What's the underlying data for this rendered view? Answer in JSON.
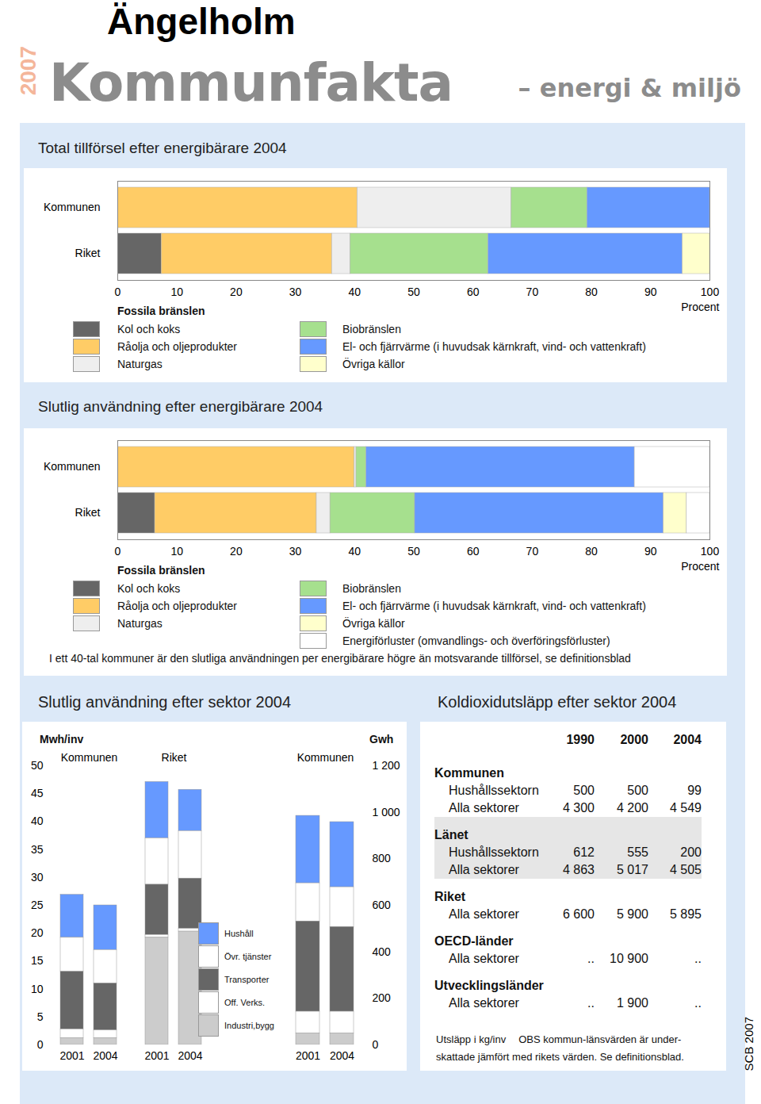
{
  "header": {
    "place": "Ängelholm",
    "year": "2007",
    "title": "Kommunfakta",
    "subtitle": "– energi & miljö",
    "source": "SCB 2007"
  },
  "chart_data": [
    {
      "type": "bar",
      "title": "Total tillförsel efter energibärare 2004",
      "orientation": "horizontal",
      "stacked": true,
      "categories": [
        "Kommunen",
        "Riket"
      ],
      "x_label": "Procent",
      "xlim": [
        0,
        100
      ],
      "xticks": [
        0,
        10,
        20,
        30,
        40,
        50,
        60,
        70,
        80,
        90,
        100
      ],
      "series": [
        {
          "name": "Kol och koks",
          "group": "Fossila bränslen",
          "color": "#666666",
          "values": [
            0,
            7.4
          ]
        },
        {
          "name": "Råolja och oljeprodukter",
          "group": "Fossila bränslen",
          "color": "#ffcc66",
          "values": [
            40.5,
            28.8
          ]
        },
        {
          "name": "Naturgas",
          "group": "Fossila bränslen",
          "color": "#eeeeee",
          "values": [
            26,
            3.1
          ]
        },
        {
          "name": "Biobränslen",
          "color": "#a6e08e",
          "values": [
            12.8,
            23.3
          ]
        },
        {
          "name": "El- och fjärrvärme (i huvudsak kärnkraft, vind- och vattenkraft)",
          "color": "#6699ff",
          "values": [
            20.7,
            32.8
          ]
        },
        {
          "name": "Övriga källor",
          "color": "#ffffcc",
          "values": [
            0,
            4.6
          ]
        }
      ]
    },
    {
      "type": "bar",
      "title": "Slutlig användning efter energibärare 2004",
      "orientation": "horizontal",
      "stacked": true,
      "categories": [
        "Kommunen",
        "Riket"
      ],
      "x_label": "Procent",
      "xlim": [
        0,
        100
      ],
      "xticks": [
        0,
        10,
        20,
        30,
        40,
        50,
        60,
        70,
        80,
        90,
        100
      ],
      "note": "I ett 40-tal kommuner är den slutliga användningen per energibärare högre än motsvarande tillförsel, se definitionsblad",
      "series": [
        {
          "name": "Kol och koks",
          "group": "Fossila bränslen",
          "color": "#666666",
          "values": [
            0,
            6.3
          ]
        },
        {
          "name": "Råolja och oljeprodukter",
          "group": "Fossila bränslen",
          "color": "#ffcc66",
          "values": [
            40,
            27.3
          ]
        },
        {
          "name": "Naturgas",
          "group": "Fossila bränslen",
          "color": "#eeeeee",
          "values": [
            0.3,
            2.3
          ]
        },
        {
          "name": "Biobränslen",
          "color": "#a6e08e",
          "values": [
            1.7,
            14.3
          ]
        },
        {
          "name": "El- och fjärrvärme (i huvudsak kärnkraft, vind- och vattenkraft)",
          "color": "#6699ff",
          "values": [
            45.3,
            42
          ]
        },
        {
          "name": "Övriga källor",
          "color": "#ffffcc",
          "values": [
            0,
            3.9
          ]
        },
        {
          "name": "Energiförluster (omvandlings- och överföringsförluster)",
          "color": "#ffffff",
          "values": [
            12.7,
            3.9
          ]
        }
      ]
    },
    {
      "type": "bar",
      "title": "Slutlig användning efter sektor 2004",
      "stacked": true,
      "y_label": "Mwh/inv",
      "categories": [
        "2001",
        "2004",
        "2001",
        "2004"
      ],
      "groups": [
        "Kommunen",
        "Kommunen",
        "Riket",
        "Riket"
      ],
      "ylim": [
        0,
        50
      ],
      "yticks": [
        0,
        5,
        10,
        15,
        20,
        25,
        30,
        35,
        40,
        45,
        50
      ],
      "series": [
        {
          "name": "Hushåll",
          "color": "#6699ff",
          "values": [
            7.7,
            8.0,
            10.1,
            7.4
          ]
        },
        {
          "name": "Övr. tjänster",
          "color": "#ffffff",
          "values": [
            6.1,
            6.0,
            8.3,
            8.5
          ]
        },
        {
          "name": "Transporter",
          "color": "#666666",
          "values": [
            10.3,
            8.4,
            9.0,
            9.0
          ]
        },
        {
          "name": "Off. Verks.",
          "color": "#ffffff",
          "values": [
            1.6,
            1.4,
            0.5,
            0.5
          ]
        },
        {
          "name": "Industri,bygg",
          "color": "#cccccc",
          "values": [
            1.2,
            1.2,
            19.2,
            20.3
          ]
        }
      ]
    },
    {
      "type": "bar",
      "stacked": true,
      "y_label": "Gwh",
      "categories": [
        "2001",
        "2004"
      ],
      "groups": [
        "Kommunen",
        "Kommunen"
      ],
      "ylim": [
        0,
        1200
      ],
      "yticks": [
        0,
        200,
        400,
        600,
        800,
        {
          "value": 1000,
          "label": "1 000"
        },
        {
          "value": 1200,
          "label": "1 200"
        }
      ],
      "series": [
        {
          "name": "Hushåll",
          "color": "#6699ff",
          "values": [
            290,
            280
          ]
        },
        {
          "name": "Övr. tjänster",
          "color": "#ffffff",
          "values": [
            164,
            171
          ]
        },
        {
          "name": "Transporter",
          "color": "#666666",
          "values": [
            388,
            364
          ]
        },
        {
          "name": "Off. Verks.",
          "color": "#ffffff",
          "values": [
            94,
            94
          ]
        },
        {
          "name": "Industri,bygg",
          "color": "#cccccc",
          "values": [
            49,
            49
          ]
        }
      ]
    }
  ],
  "table": {
    "title": "Koldioxidutsläpp efter sektor 2004",
    "columns": [
      "1990",
      "2000",
      "2004"
    ],
    "sections": [
      {
        "name": "Kommunen",
        "rows": [
          [
            "Hushållssektorn",
            "500",
            "500",
            "99"
          ],
          [
            "Alla sektorer",
            "4 300",
            "4 200",
            "4 549"
          ]
        ]
      },
      {
        "name": "Länet",
        "rows": [
          [
            "Hushållssektorn",
            "612",
            "555",
            "200"
          ],
          [
            "Alla sektorer",
            "4 863",
            "5 017",
            "4 505"
          ]
        ]
      },
      {
        "name": "Riket",
        "rows": [
          [
            "Alla sektorer",
            "6 600",
            "5 900",
            "5 895"
          ]
        ]
      },
      {
        "name": "OECD-länder",
        "rows": [
          [
            "Alla sektorer",
            "..",
            "10 900",
            ".."
          ]
        ]
      },
      {
        "name": "Utvecklingsländer",
        "rows": [
          [
            "Alla sektorer",
            "..",
            "1 900",
            ".."
          ]
        ]
      }
    ],
    "notes": [
      "Utsläpp i kg/inv",
      "OBS kommun-länsvärden är under-",
      "skattade jämfört med rikets värden. Se definitionsblad."
    ]
  }
}
